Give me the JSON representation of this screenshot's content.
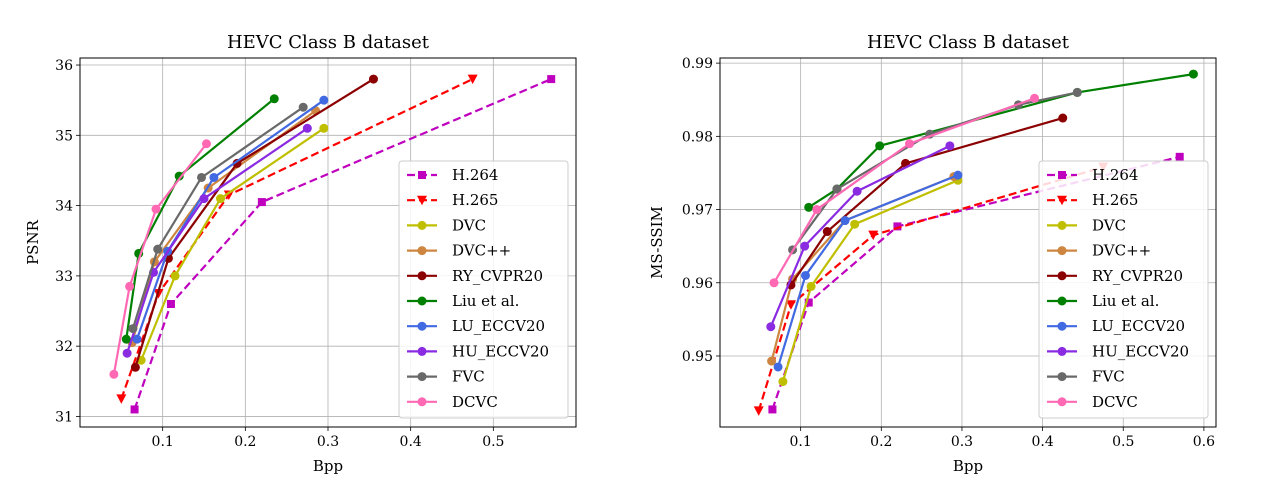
{
  "chart_data": [
    {
      "type": "line",
      "title": "HEVC Class B dataset",
      "xlabel": "Bpp",
      "ylabel": "PSNR",
      "xlim": [
        0.0,
        0.6
      ],
      "ylim": [
        30.85,
        36.1
      ],
      "xticks": [
        0.1,
        0.2,
        0.3,
        0.4,
        0.5
      ],
      "xtick_labels": [
        "0.1",
        "0.2",
        "0.3",
        "0.4",
        "0.5"
      ],
      "yticks": [
        31,
        32,
        33,
        34,
        35,
        36
      ],
      "ytick_labels": [
        "31",
        "32",
        "33",
        "34",
        "35",
        "36"
      ],
      "grid": true,
      "legend_position": "lower-right",
      "series": [
        {
          "name": "H.264",
          "color": "#bf00bf",
          "marker": "square",
          "dash": "dashed",
          "x": [
            0.066,
            0.11,
            0.22,
            0.57
          ],
          "y": [
            31.1,
            32.6,
            34.05,
            35.8
          ]
        },
        {
          "name": "H.265",
          "color": "#ff0000",
          "marker": "triangle-down",
          "dash": "dashed",
          "x": [
            0.05,
            0.095,
            0.18,
            0.475
          ],
          "y": [
            31.25,
            32.75,
            34.15,
            35.8
          ]
        },
        {
          "name": "DVC",
          "color": "#bfbf00",
          "marker": "circle",
          "dash": "solid",
          "x": [
            0.074,
            0.115,
            0.17,
            0.295
          ],
          "y": [
            31.8,
            33.0,
            34.1,
            35.1
          ]
        },
        {
          "name": "DVC++",
          "color": "#cd853f",
          "marker": "circle",
          "dash": "solid",
          "x": [
            0.063,
            0.09,
            0.155,
            0.285
          ],
          "y": [
            32.05,
            33.2,
            34.25,
            35.35
          ]
        },
        {
          "name": "RY_CVPR20",
          "color": "#8b0000",
          "marker": "circle",
          "dash": "solid",
          "x": [
            0.067,
            0.107,
            0.19,
            0.355
          ],
          "y": [
            31.7,
            33.25,
            34.6,
            35.8
          ]
        },
        {
          "name": "Liu et al.",
          "color": "#008000",
          "marker": "circle",
          "dash": "solid",
          "x": [
            0.056,
            0.071,
            0.12,
            0.235
          ],
          "y": [
            32.1,
            33.32,
            34.42,
            35.52
          ]
        },
        {
          "name": "LU_ECCV20",
          "color": "#4169e1",
          "marker": "circle",
          "dash": "solid",
          "x": [
            0.069,
            0.106,
            0.162,
            0.295
          ],
          "y": [
            32.1,
            33.35,
            34.4,
            35.5
          ]
        },
        {
          "name": "HU_ECCV20",
          "color": "#8a2be2",
          "marker": "circle",
          "dash": "solid",
          "x": [
            0.057,
            0.089,
            0.15,
            0.275
          ],
          "y": [
            31.9,
            33.05,
            34.1,
            35.1
          ]
        },
        {
          "name": "FVC",
          "color": "#696969",
          "marker": "circle",
          "dash": "solid",
          "x": [
            0.064,
            0.094,
            0.147,
            0.27
          ],
          "y": [
            32.25,
            33.38,
            34.4,
            35.4
          ]
        },
        {
          "name": "DCVC",
          "color": "#ff69b4",
          "marker": "circle",
          "dash": "solid",
          "x": [
            0.041,
            0.06,
            0.092,
            0.153
          ],
          "y": [
            31.6,
            32.85,
            33.95,
            34.88
          ]
        }
      ]
    },
    {
      "type": "line",
      "title": "HEVC Class B dataset",
      "xlabel": "Bpp",
      "ylabel": "MS-SSIM",
      "xlim": [
        0.0,
        0.615
      ],
      "ylim": [
        0.9403,
        0.9907
      ],
      "xticks": [
        0.1,
        0.2,
        0.3,
        0.4,
        0.5,
        0.6
      ],
      "xtick_labels": [
        "0.1",
        "0.2",
        "0.3",
        "0.4",
        "0.5",
        "0.6"
      ],
      "yticks": [
        0.95,
        0.96,
        0.97,
        0.98,
        0.99
      ],
      "ytick_labels": [
        "0.95",
        "0.96",
        "0.97",
        "0.98",
        "0.99"
      ],
      "grid": true,
      "legend_position": "lower-right",
      "series": [
        {
          "name": "H.264",
          "color": "#bf00bf",
          "marker": "square",
          "dash": "dashed",
          "x": [
            0.065,
            0.11,
            0.22,
            0.57
          ],
          "y": [
            0.9427,
            0.9573,
            0.9677,
            0.9772
          ]
        },
        {
          "name": "H.265",
          "color": "#ff0000",
          "marker": "triangle-down",
          "dash": "dashed",
          "x": [
            0.048,
            0.088,
            0.19,
            0.475
          ],
          "y": [
            0.9425,
            0.957,
            0.9665,
            0.9758
          ]
        },
        {
          "name": "DVC",
          "color": "#bfbf00",
          "marker": "circle",
          "dash": "solid",
          "x": [
            0.078,
            0.113,
            0.167,
            0.295
          ],
          "y": [
            0.9465,
            0.9595,
            0.968,
            0.974
          ]
        },
        {
          "name": "DVC++",
          "color": "#cd853f",
          "marker": "circle",
          "dash": "solid",
          "x": [
            0.064,
            0.09,
            0.155,
            0.29
          ],
          "y": [
            0.9493,
            0.9605,
            0.9685,
            0.9745
          ]
        },
        {
          "name": "RY_CVPR20",
          "color": "#8b0000",
          "marker": "circle",
          "dash": "solid",
          "x": [
            0.088,
            0.133,
            0.23,
            0.425
          ],
          "y": [
            0.9597,
            0.967,
            0.9763,
            0.9825
          ]
        },
        {
          "name": "Liu et al.",
          "color": "#008000",
          "marker": "circle",
          "dash": "solid",
          "x": [
            0.11,
            0.145,
            0.198,
            0.443,
            0.587
          ],
          "y": [
            0.9703,
            0.9728,
            0.9787,
            0.986,
            0.9885
          ]
        },
        {
          "name": "LU_ECCV20",
          "color": "#4169e1",
          "marker": "circle",
          "dash": "solid",
          "x": [
            0.072,
            0.106,
            0.155,
            0.295
          ],
          "y": [
            0.9485,
            0.961,
            0.9685,
            0.9747
          ]
        },
        {
          "name": "HU_ECCV20",
          "color": "#8a2be2",
          "marker": "circle",
          "dash": "solid",
          "x": [
            0.063,
            0.105,
            0.17,
            0.285
          ],
          "y": [
            0.954,
            0.965,
            0.9725,
            0.9787
          ]
        },
        {
          "name": "FVC",
          "color": "#696969",
          "marker": "circle",
          "dash": "solid",
          "x": [
            0.09,
            0.145,
            0.26,
            0.37,
            0.443
          ],
          "y": [
            0.9645,
            0.9728,
            0.9803,
            0.9843,
            0.986
          ]
        },
        {
          "name": "DCVC",
          "color": "#ff69b4",
          "marker": "circle",
          "dash": "solid",
          "x": [
            0.067,
            0.12,
            0.235,
            0.39
          ],
          "y": [
            0.96,
            0.97,
            0.979,
            0.9852
          ]
        }
      ]
    }
  ]
}
